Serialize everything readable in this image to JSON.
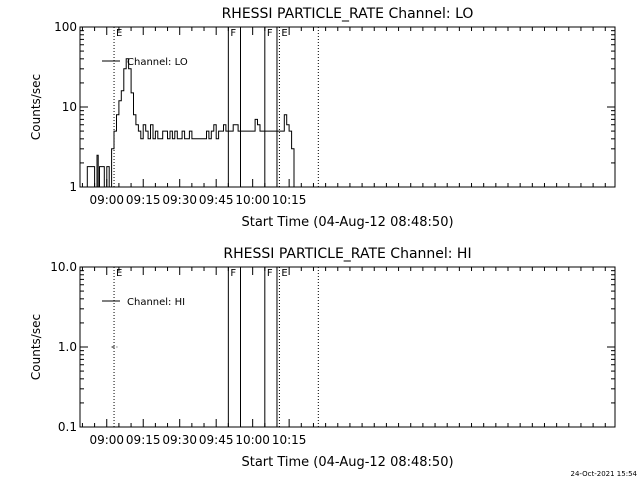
{
  "footer_stamp": "24-Oct-2021 15:54",
  "chart_data": [
    {
      "type": "line",
      "title": "RHESSI PARTICLE_RATE Channel: LO",
      "xlabel": "Start Time (04-Aug-12 08:48:50)",
      "ylabel": "Counts/sec",
      "yscale": "log",
      "ylim": [
        1,
        100
      ],
      "yticks": [
        1,
        10,
        100
      ],
      "ytick_labels": [
        "1",
        "10",
        "100"
      ],
      "xlim_minutes": [
        529,
        749
      ],
      "xticks_minutes": [
        540,
        555,
        570,
        585,
        600,
        615
      ],
      "xtick_labels": [
        "09:00",
        "09:15",
        "09:30",
        "09:45",
        "10:00",
        "10:15"
      ],
      "legend": "top-left",
      "series": [
        {
          "name": "Channel: LO",
          "x_minutes": [
            531,
            532,
            533,
            534,
            535,
            536,
            536.5,
            537,
            538,
            539,
            540,
            541,
            542,
            543,
            544,
            545,
            546,
            547,
            548,
            549,
            550,
            551,
            552,
            553,
            554,
            555,
            556,
            557,
            558,
            559,
            560,
            561,
            562,
            563,
            564,
            565,
            566,
            567,
            568,
            569,
            570,
            571,
            572,
            573,
            574,
            575,
            576,
            577,
            578,
            579,
            580,
            581,
            582,
            583,
            584,
            585,
            586,
            587,
            588,
            589,
            590,
            591,
            592,
            593,
            594,
            595,
            596,
            597,
            598,
            599,
            600,
            601,
            602,
            603,
            604,
            605,
            606,
            607,
            608,
            609,
            610,
            611,
            612,
            613,
            614,
            615,
            616,
            617
          ],
          "values": [
            1.0,
            1.8,
            1.8,
            1.8,
            1.0,
            2.5,
            1.0,
            1.8,
            1.8,
            1.0,
            1.8,
            1.0,
            3.0,
            5.0,
            8.0,
            12.0,
            16.0,
            30.0,
            40.0,
            30.0,
            15.0,
            8.0,
            6.0,
            5.0,
            4.0,
            6.0,
            5.0,
            4.0,
            6.0,
            4.0,
            5.0,
            4.0,
            4.0,
            5.0,
            5.0,
            4.0,
            5.0,
            4.0,
            5.0,
            4.0,
            4.0,
            5.0,
            4.0,
            4.0,
            5.0,
            4.0,
            4.0,
            4.0,
            4.0,
            4.0,
            4.0,
            5.0,
            4.0,
            5.0,
            6.0,
            4.0,
            5.0,
            5.0,
            6.0,
            5.0,
            5.0,
            5.0,
            6.0,
            6.0,
            5.0,
            5.0,
            5.0,
            5.0,
            5.0,
            5.0,
            5.0,
            7.0,
            6.0,
            5.0,
            5.0,
            5.0,
            5.0,
            5.0,
            5.0,
            5.0,
            5.0,
            5.0,
            5.0,
            8.0,
            6.0,
            5.0,
            3.0,
            1.0
          ]
        }
      ],
      "vlines": [
        {
          "x_minutes": 543,
          "style": "dotted",
          "label": "E"
        },
        {
          "x_minutes": 590,
          "style": "solid",
          "label": "F"
        },
        {
          "x_minutes": 595,
          "style": "solid",
          "label": ""
        },
        {
          "x_minutes": 605,
          "style": "solid",
          "label": "F"
        },
        {
          "x_minutes": 610,
          "style": "solid",
          "label": ""
        },
        {
          "x_minutes": 611,
          "style": "dotted",
          "label": "E"
        },
        {
          "x_minutes": 627,
          "style": "dotted",
          "label": ""
        }
      ]
    },
    {
      "type": "line",
      "title": "RHESSI PARTICLE_RATE Channel: HI",
      "xlabel": "Start Time (04-Aug-12 08:48:50)",
      "ylabel": "Counts/sec",
      "yscale": "log",
      "ylim": [
        0.1,
        10
      ],
      "yticks": [
        0.1,
        1,
        10
      ],
      "ytick_labels": [
        "0.1",
        "1.0",
        "10.0"
      ],
      "xlim_minutes": [
        529,
        749
      ],
      "xticks_minutes": [
        540,
        555,
        570,
        585,
        600,
        615
      ],
      "xtick_labels": [
        "09:00",
        "09:15",
        "09:30",
        "09:45",
        "10:00",
        "10:15"
      ],
      "legend": "top-left",
      "series": [
        {
          "name": "Channel: HI",
          "x_minutes": [
            542,
            543.5
          ],
          "values": [
            1.0,
            1.0
          ]
        }
      ],
      "vlines": [
        {
          "x_minutes": 543,
          "style": "dotted",
          "label": "E"
        },
        {
          "x_minutes": 590,
          "style": "solid",
          "label": "F"
        },
        {
          "x_minutes": 595,
          "style": "solid",
          "label": ""
        },
        {
          "x_minutes": 605,
          "style": "solid",
          "label": "F"
        },
        {
          "x_minutes": 610,
          "style": "solid",
          "label": ""
        },
        {
          "x_minutes": 611,
          "style": "dotted",
          "label": "E"
        },
        {
          "x_minutes": 627,
          "style": "dotted",
          "label": ""
        }
      ]
    }
  ]
}
